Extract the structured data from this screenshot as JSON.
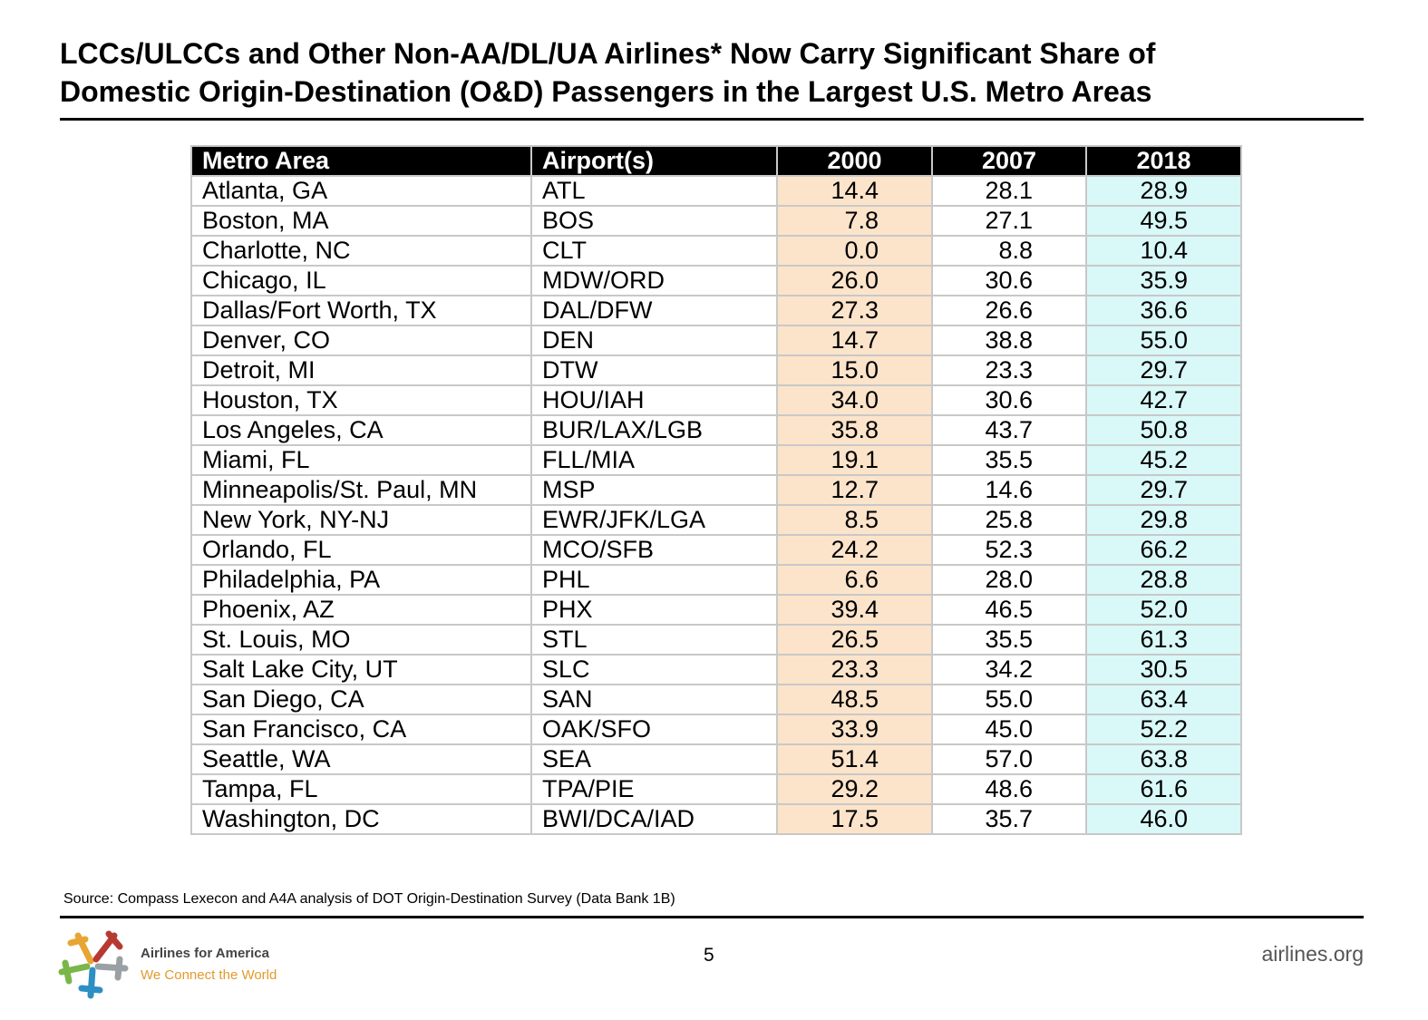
{
  "header": {
    "title": [
      "LCCs/ULCCs and Other Non-AA/DL/UA Airlines* Now Carry Significant Share of",
      "Domestic Origin-Destination (O&D) Passengers in the Largest U.S. Metro Areas"
    ]
  },
  "table": {
    "columns": [
      "Metro Area",
      "Airport(s)",
      "2000",
      "2007",
      "2018"
    ],
    "rows": [
      [
        "Atlanta, GA",
        "ATL",
        "14.4",
        "28.1",
        "28.9"
      ],
      [
        "Boston, MA",
        "BOS",
        "7.8",
        "27.1",
        "49.5"
      ],
      [
        "Charlotte, NC",
        "CLT",
        "0.0",
        "8.8",
        "10.4"
      ],
      [
        "Chicago, IL",
        "MDW/ORD",
        "26.0",
        "30.6",
        "35.9"
      ],
      [
        "Dallas/Fort Worth, TX",
        "DAL/DFW",
        "27.3",
        "26.6",
        "36.6"
      ],
      [
        "Denver, CO",
        "DEN",
        "14.7",
        "38.8",
        "55.0"
      ],
      [
        "Detroit, MI",
        "DTW",
        "15.0",
        "23.3",
        "29.7"
      ],
      [
        "Houston, TX",
        "HOU/IAH",
        "34.0",
        "30.6",
        "42.7"
      ],
      [
        "Los Angeles, CA",
        "BUR/LAX/LGB",
        "35.8",
        "43.7",
        "50.8"
      ],
      [
        "Miami, FL",
        "FLL/MIA",
        "19.1",
        "35.5",
        "45.2"
      ],
      [
        "Minneapolis/St. Paul, MN",
        "MSP",
        "12.7",
        "14.6",
        "29.7"
      ],
      [
        "New York, NY-NJ",
        "EWR/JFK/LGA",
        "8.5",
        "25.8",
        "29.8"
      ],
      [
        "Orlando, FL",
        "MCO/SFB",
        "24.2",
        "52.3",
        "66.2"
      ],
      [
        "Philadelphia, PA",
        "PHL",
        "6.6",
        "28.0",
        "28.8"
      ],
      [
        "Phoenix, AZ",
        "PHX",
        "39.4",
        "46.5",
        "52.0"
      ],
      [
        "St. Louis, MO",
        "STL",
        "26.5",
        "35.5",
        "61.3"
      ],
      [
        "Salt Lake City, UT",
        "SLC",
        "23.3",
        "34.2",
        "30.5"
      ],
      [
        "San Diego, CA",
        "SAN",
        "48.5",
        "55.0",
        "63.4"
      ],
      [
        "San Francisco, CA",
        "OAK/SFO",
        "33.9",
        "45.0",
        "52.2"
      ],
      [
        "Seattle, WA",
        "SEA",
        "51.4",
        "57.0",
        "63.8"
      ],
      [
        "Tampa, FL",
        "TPA/PIE",
        "29.2",
        "48.6",
        "61.6"
      ],
      [
        "Washington, DC",
        "BWI/DCA/IAD",
        "17.5",
        "35.7",
        "46.0"
      ]
    ]
  },
  "source": "Source: Compass Lexecon and A4A analysis of DOT Origin-Destination Survey (Data Bank 1B)",
  "footer": {
    "logo_name": "Airlines for America",
    "logo_tagline": "We Connect the World",
    "page_number": "5",
    "website": "airlines.org"
  }
}
